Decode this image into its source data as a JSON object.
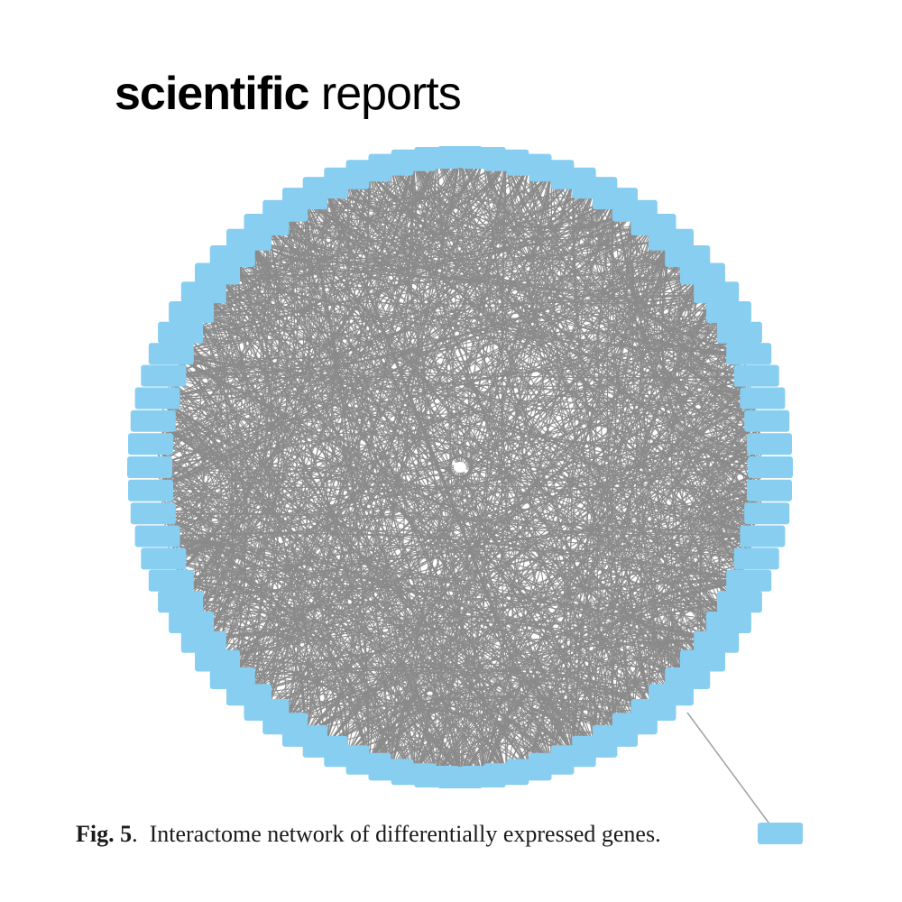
{
  "journal": {
    "name_bold": "scientific",
    "name_regular": "reports"
  },
  "figure": {
    "label": "Fig. 5",
    "caption_text": "Interactome network of differentially expressed genes.",
    "node_color": "#87cef1",
    "edge_color": "#8a8a8a",
    "node_shape": "rounded-rectangle",
    "layout": "circular",
    "nodes_on_circle": 84,
    "outlier_nodes": 1
  }
}
